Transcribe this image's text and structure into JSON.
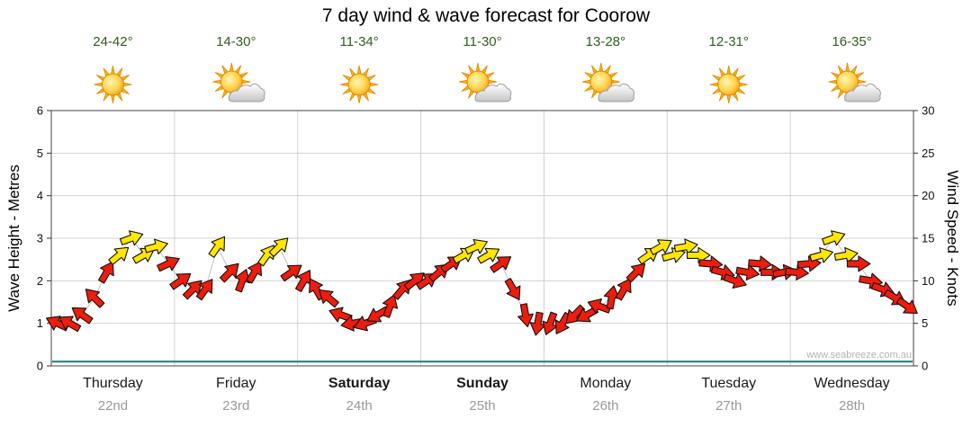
{
  "title": "7 day wind & wave forecast for Coorow",
  "watermark": "www.seabreeze.com.au",
  "axes": {
    "left_label": "Wave Height - Metres",
    "right_label": "Wind Speed - Knots",
    "left_ticks": [
      0,
      1,
      2,
      3,
      4,
      5,
      6
    ],
    "right_ticks": [
      0,
      5,
      10,
      15,
      20,
      25,
      30
    ]
  },
  "days": [
    {
      "name": "Thursday",
      "date": "22nd",
      "temp": "24-42°",
      "icon": "sunny",
      "bold": false
    },
    {
      "name": "Friday",
      "date": "23rd",
      "temp": "14-30°",
      "icon": "sun-cloud",
      "bold": false
    },
    {
      "name": "Saturday",
      "date": "24th",
      "temp": "11-34°",
      "icon": "sunny",
      "bold": true
    },
    {
      "name": "Sunday",
      "date": "25th",
      "temp": "11-30°",
      "icon": "sun-cloud",
      "bold": true
    },
    {
      "name": "Monday",
      "date": "26th",
      "temp": "13-28°",
      "icon": "sun-cloud",
      "bold": false
    },
    {
      "name": "Tuesday",
      "date": "27th",
      "temp": "12-31°",
      "icon": "sunny",
      "bold": false
    },
    {
      "name": "Wednesday",
      "date": "28th",
      "temp": "16-35°",
      "icon": "sun-cloud",
      "bold": false
    }
  ],
  "colors": {
    "arrow_red": "#ee1c0c",
    "arrow_yellow": "#ffe600",
    "arrow_outline": "#111111",
    "grid": "#d2d2d2",
    "frame": "#444444",
    "tick": "#333333",
    "wave_line": "#1f7a7a",
    "connector": "#c0c0c0"
  },
  "chart_data": {
    "type": "scatter",
    "title": "7 day wind & wave forecast for Coorow",
    "x_categories": [
      "Thursday 22nd",
      "Friday 23rd",
      "Saturday 24th",
      "Sunday 25th",
      "Monday 26th",
      "Tuesday 27th",
      "Wednesday 28th"
    ],
    "left_axis": {
      "label": "Wave Height - Metres",
      "range": [
        0,
        6
      ],
      "grid": true
    },
    "right_axis": {
      "label": "Wind Speed - Knots",
      "range": [
        0,
        30
      ]
    },
    "points_per_day": 10,
    "wave_height_m": 0.1,
    "legend": "arrow color: yellow >= 13 knots, red < 13 knots; arrow angle = wind direction",
    "wind_arrows": [
      {
        "day": 0,
        "speed": 5,
        "dir": 205,
        "color": "red"
      },
      {
        "day": 0,
        "speed": 5,
        "dir": 210,
        "color": "red"
      },
      {
        "day": 0,
        "speed": 6,
        "dir": 215,
        "color": "red"
      },
      {
        "day": 0,
        "speed": 8,
        "dir": 225,
        "color": "red"
      },
      {
        "day": 0,
        "speed": 11,
        "dir": -60,
        "color": "red"
      },
      {
        "day": 0,
        "speed": 13,
        "dir": -40,
        "color": "yellow"
      },
      {
        "day": 0,
        "speed": 15,
        "dir": -20,
        "color": "yellow"
      },
      {
        "day": 0,
        "speed": 13,
        "dir": -30,
        "color": "yellow"
      },
      {
        "day": 0,
        "speed": 14,
        "dir": -15,
        "color": "yellow"
      },
      {
        "day": 0,
        "speed": 12,
        "dir": -25,
        "color": "red"
      },
      {
        "day": 1,
        "speed": 10,
        "dir": -35,
        "color": "red"
      },
      {
        "day": 1,
        "speed": 9,
        "dir": -45,
        "color": "red"
      },
      {
        "day": 1,
        "speed": 9,
        "dir": -55,
        "color": "red"
      },
      {
        "day": 1,
        "speed": 14,
        "dir": -55,
        "color": "yellow"
      },
      {
        "day": 1,
        "speed": 11,
        "dir": -45,
        "color": "red"
      },
      {
        "day": 1,
        "speed": 10,
        "dir": -70,
        "color": "red"
      },
      {
        "day": 1,
        "speed": 11,
        "dir": -60,
        "color": "red"
      },
      {
        "day": 1,
        "speed": 13,
        "dir": -55,
        "color": "yellow"
      },
      {
        "day": 1,
        "speed": 14,
        "dir": -45,
        "color": "yellow"
      },
      {
        "day": 1,
        "speed": 11,
        "dir": -35,
        "color": "red"
      },
      {
        "day": 2,
        "speed": 10,
        "dir": -60,
        "color": "red"
      },
      {
        "day": 2,
        "speed": 9,
        "dir": -120,
        "color": "red"
      },
      {
        "day": 2,
        "speed": 8,
        "dir": -140,
        "color": "red"
      },
      {
        "day": 2,
        "speed": 6,
        "dir": -160,
        "color": "red"
      },
      {
        "day": 2,
        "speed": 5,
        "dir": 170,
        "color": "red"
      },
      {
        "day": 2,
        "speed": 5,
        "dir": 160,
        "color": "red"
      },
      {
        "day": 2,
        "speed": 6,
        "dir": 150,
        "color": "red"
      },
      {
        "day": 2,
        "speed": 7,
        "dir": -70,
        "color": "red"
      },
      {
        "day": 2,
        "speed": 9,
        "dir": -50,
        "color": "red"
      },
      {
        "day": 2,
        "speed": 10,
        "dir": -40,
        "color": "red"
      },
      {
        "day": 3,
        "speed": 10,
        "dir": -35,
        "color": "red"
      },
      {
        "day": 3,
        "speed": 11,
        "dir": -40,
        "color": "red"
      },
      {
        "day": 3,
        "speed": 12,
        "dir": -35,
        "color": "red"
      },
      {
        "day": 3,
        "speed": 13,
        "dir": -30,
        "color": "yellow"
      },
      {
        "day": 3,
        "speed": 14,
        "dir": -25,
        "color": "yellow"
      },
      {
        "day": 3,
        "speed": 13,
        "dir": -30,
        "color": "yellow"
      },
      {
        "day": 3,
        "speed": 12,
        "dir": -35,
        "color": "red"
      },
      {
        "day": 3,
        "speed": 9,
        "dir": 60,
        "color": "red"
      },
      {
        "day": 3,
        "speed": 6,
        "dir": 80,
        "color": "red"
      },
      {
        "day": 3,
        "speed": 5,
        "dir": 100,
        "color": "red"
      },
      {
        "day": 4,
        "speed": 5,
        "dir": 110,
        "color": "red"
      },
      {
        "day": 4,
        "speed": 5,
        "dir": 120,
        "color": "red"
      },
      {
        "day": 4,
        "speed": 6,
        "dir": 135,
        "color": "red"
      },
      {
        "day": 4,
        "speed": 6,
        "dir": 150,
        "color": "red"
      },
      {
        "day": 4,
        "speed": 7,
        "dir": -160,
        "color": "red"
      },
      {
        "day": 4,
        "speed": 8,
        "dir": -80,
        "color": "red"
      },
      {
        "day": 4,
        "speed": 9,
        "dir": -60,
        "color": "red"
      },
      {
        "day": 4,
        "speed": 11,
        "dir": -45,
        "color": "red"
      },
      {
        "day": 4,
        "speed": 13,
        "dir": -35,
        "color": "yellow"
      },
      {
        "day": 4,
        "speed": 14,
        "dir": -30,
        "color": "yellow"
      },
      {
        "day": 5,
        "speed": 13,
        "dir": -15,
        "color": "yellow"
      },
      {
        "day": 5,
        "speed": 14,
        "dir": -10,
        "color": "yellow"
      },
      {
        "day": 5,
        "speed": 13,
        "dir": 0,
        "color": "yellow"
      },
      {
        "day": 5,
        "speed": 12,
        "dir": 5,
        "color": "red"
      },
      {
        "day": 5,
        "speed": 11,
        "dir": 15,
        "color": "red"
      },
      {
        "day": 5,
        "speed": 10,
        "dir": 20,
        "color": "red"
      },
      {
        "day": 5,
        "speed": 11,
        "dir": 10,
        "color": "red"
      },
      {
        "day": 5,
        "speed": 12,
        "dir": 5,
        "color": "red"
      },
      {
        "day": 5,
        "speed": 11,
        "dir": 0,
        "color": "red"
      },
      {
        "day": 5,
        "speed": 11,
        "dir": -10,
        "color": "red"
      },
      {
        "day": 6,
        "speed": 11,
        "dir": 5,
        "color": "red"
      },
      {
        "day": 6,
        "speed": 12,
        "dir": -5,
        "color": "red"
      },
      {
        "day": 6,
        "speed": 13,
        "dir": -15,
        "color": "yellow"
      },
      {
        "day": 6,
        "speed": 15,
        "dir": -20,
        "color": "yellow"
      },
      {
        "day": 6,
        "speed": 13,
        "dir": -10,
        "color": "yellow"
      },
      {
        "day": 6,
        "speed": 12,
        "dir": 0,
        "color": "red"
      },
      {
        "day": 6,
        "speed": 10,
        "dir": 10,
        "color": "red"
      },
      {
        "day": 6,
        "speed": 9,
        "dir": 20,
        "color": "red"
      },
      {
        "day": 6,
        "speed": 8,
        "dir": 30,
        "color": "red"
      },
      {
        "day": 6,
        "speed": 7,
        "dir": 35,
        "color": "red"
      }
    ]
  }
}
